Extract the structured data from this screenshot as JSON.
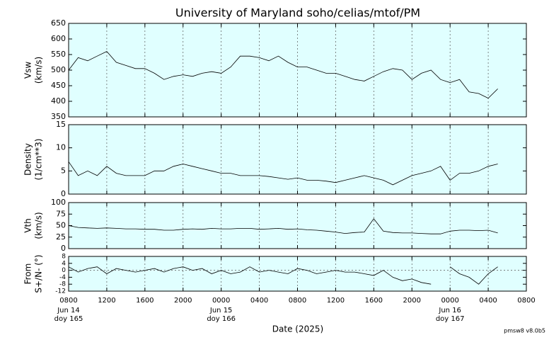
{
  "chart_data": [
    {
      "type": "line",
      "title": "University of Maryland  soho/celias/mtof/PM",
      "ylabel": [
        "Vsw",
        "(km/s)"
      ],
      "x": [
        "2025-06-14T08:00",
        "2025-06-14T09:00",
        "2025-06-14T10:00",
        "2025-06-14T11:00",
        "2025-06-14T12:00",
        "2025-06-14T13:00",
        "2025-06-14T14:00",
        "2025-06-14T15:00",
        "2025-06-14T16:00",
        "2025-06-14T17:00",
        "2025-06-14T18:00",
        "2025-06-14T19:00",
        "2025-06-14T20:00",
        "2025-06-14T21:00",
        "2025-06-14T22:00",
        "2025-06-14T23:00",
        "2025-06-15T00:00",
        "2025-06-15T01:00",
        "2025-06-15T02:00",
        "2025-06-15T03:00",
        "2025-06-15T04:00",
        "2025-06-15T05:00",
        "2025-06-15T06:00",
        "2025-06-15T07:00",
        "2025-06-15T08:00",
        "2025-06-15T09:00",
        "2025-06-15T10:00",
        "2025-06-15T11:00",
        "2025-06-15T12:00",
        "2025-06-15T13:00",
        "2025-06-15T14:00",
        "2025-06-15T15:00",
        "2025-06-15T16:00",
        "2025-06-15T17:00",
        "2025-06-15T18:00",
        "2025-06-15T19:00",
        "2025-06-15T20:00",
        "2025-06-15T21:00",
        "2025-06-15T22:00",
        "2025-06-15T23:00",
        "2025-06-16T00:00",
        "2025-06-16T01:00",
        "2025-06-16T02:00",
        "2025-06-16T03:00",
        "2025-06-16T04:00",
        "2025-06-16T05:00"
      ],
      "series": [
        {
          "color": "#000000",
          "values": [
            500,
            540,
            530,
            545,
            560,
            525,
            515,
            505,
            505,
            490,
            470,
            480,
            485,
            480,
            490,
            495,
            490,
            510,
            545,
            545,
            540,
            530,
            545,
            525,
            510,
            510,
            500,
            490,
            490,
            480,
            470,
            465,
            480,
            495,
            505,
            500,
            470,
            490,
            500,
            470,
            460,
            470,
            430,
            425,
            410,
            440
          ]
        }
      ],
      "xlim": [
        "2025-06-14T08:00",
        "2025-06-16T08:00"
      ],
      "xticks": [
        {
          "value": "2025-06-14T08:00",
          "label": "0800"
        },
        {
          "value": "2025-06-14T12:00",
          "label": "1200"
        },
        {
          "value": "2025-06-14T16:00",
          "label": "1600"
        },
        {
          "value": "2025-06-14T20:00",
          "label": "2000"
        },
        {
          "value": "2025-06-15T00:00",
          "label": "0000"
        },
        {
          "value": "2025-06-15T04:00",
          "label": "0400"
        },
        {
          "value": "2025-06-15T08:00",
          "label": "0800"
        },
        {
          "value": "2025-06-15T12:00",
          "label": "1200"
        },
        {
          "value": "2025-06-15T16:00",
          "label": "1600"
        },
        {
          "value": "2025-06-15T20:00",
          "label": "2000"
        },
        {
          "value": "2025-06-16T00:00",
          "label": "0000"
        },
        {
          "value": "2025-06-16T04:00",
          "label": "0400"
        },
        {
          "value": "2025-06-16T08:00",
          "label": "0800"
        }
      ],
      "ylim": [
        350,
        650
      ],
      "yticks": [
        350,
        400,
        450,
        500,
        550,
        600,
        650
      ],
      "grid": true
    },
    {
      "type": "line",
      "ylabel": [
        "Density",
        "(1/cm**3)"
      ],
      "x": [
        "2025-06-14T08:00",
        "2025-06-14T09:00",
        "2025-06-14T10:00",
        "2025-06-14T11:00",
        "2025-06-14T12:00",
        "2025-06-14T13:00",
        "2025-06-14T14:00",
        "2025-06-14T15:00",
        "2025-06-14T16:00",
        "2025-06-14T17:00",
        "2025-06-14T18:00",
        "2025-06-14T19:00",
        "2025-06-14T20:00",
        "2025-06-14T21:00",
        "2025-06-14T22:00",
        "2025-06-14T23:00",
        "2025-06-15T00:00",
        "2025-06-15T01:00",
        "2025-06-15T02:00",
        "2025-06-15T03:00",
        "2025-06-15T04:00",
        "2025-06-15T05:00",
        "2025-06-15T06:00",
        "2025-06-15T07:00",
        "2025-06-15T08:00",
        "2025-06-15T09:00",
        "2025-06-15T10:00",
        "2025-06-15T11:00",
        "2025-06-15T12:00",
        "2025-06-15T13:00",
        "2025-06-15T14:00",
        "2025-06-15T15:00",
        "2025-06-15T16:00",
        "2025-06-15T17:00",
        "2025-06-15T18:00",
        "2025-06-15T19:00",
        "2025-06-15T20:00",
        "2025-06-15T21:00",
        "2025-06-15T22:00",
        "2025-06-15T23:00",
        "2025-06-16T00:00",
        "2025-06-16T01:00",
        "2025-06-16T02:00",
        "2025-06-16T03:00",
        "2025-06-16T04:00",
        "2025-06-16T05:00"
      ],
      "series": [
        {
          "color": "#000000",
          "values": [
            7,
            4,
            5,
            4,
            6,
            4.5,
            4,
            4,
            4,
            5,
            5,
            6,
            6.5,
            6,
            5.5,
            5,
            4.5,
            4.5,
            4,
            4,
            4,
            3.8,
            3.5,
            3.2,
            3.5,
            3,
            3,
            2.8,
            2.5,
            3,
            3.5,
            4,
            3.5,
            3,
            2,
            3,
            4,
            4.5,
            5,
            6,
            3,
            4.5,
            4.5,
            5,
            6,
            6.5
          ]
        }
      ],
      "xlim": [
        "2025-06-14T08:00",
        "2025-06-16T08:00"
      ],
      "xticks": [
        {
          "value": "2025-06-14T08:00",
          "label": "0800"
        },
        {
          "value": "2025-06-14T12:00",
          "label": "1200"
        },
        {
          "value": "2025-06-14T16:00",
          "label": "1600"
        },
        {
          "value": "2025-06-14T20:00",
          "label": "2000"
        },
        {
          "value": "2025-06-15T00:00",
          "label": "0000"
        },
        {
          "value": "2025-06-15T04:00",
          "label": "0400"
        },
        {
          "value": "2025-06-15T08:00",
          "label": "0800"
        },
        {
          "value": "2025-06-15T12:00",
          "label": "1200"
        },
        {
          "value": "2025-06-15T16:00",
          "label": "1600"
        },
        {
          "value": "2025-06-15T20:00",
          "label": "2000"
        },
        {
          "value": "2025-06-16T00:00",
          "label": "0000"
        },
        {
          "value": "2025-06-16T04:00",
          "label": "0400"
        },
        {
          "value": "2025-06-16T08:00",
          "label": "0800"
        }
      ],
      "ylim": [
        0,
        15
      ],
      "yticks": [
        0,
        5,
        10,
        15
      ],
      "grid": true
    },
    {
      "type": "line",
      "ylabel": [
        "Vth",
        "(km/s)"
      ],
      "x": [
        "2025-06-14T08:00",
        "2025-06-14T09:00",
        "2025-06-14T10:00",
        "2025-06-14T11:00",
        "2025-06-14T12:00",
        "2025-06-14T13:00",
        "2025-06-14T14:00",
        "2025-06-14T15:00",
        "2025-06-14T16:00",
        "2025-06-14T17:00",
        "2025-06-14T18:00",
        "2025-06-14T19:00",
        "2025-06-14T20:00",
        "2025-06-14T21:00",
        "2025-06-14T22:00",
        "2025-06-14T23:00",
        "2025-06-15T00:00",
        "2025-06-15T01:00",
        "2025-06-15T02:00",
        "2025-06-15T03:00",
        "2025-06-15T04:00",
        "2025-06-15T05:00",
        "2025-06-15T06:00",
        "2025-06-15T07:00",
        "2025-06-15T08:00",
        "2025-06-15T09:00",
        "2025-06-15T10:00",
        "2025-06-15T11:00",
        "2025-06-15T12:00",
        "2025-06-15T13:00",
        "2025-06-15T14:00",
        "2025-06-15T15:00",
        "2025-06-15T16:00",
        "2025-06-15T17:00",
        "2025-06-15T18:00",
        "2025-06-15T19:00",
        "2025-06-15T20:00",
        "2025-06-15T21:00",
        "2025-06-15T22:00",
        "2025-06-15T23:00",
        "2025-06-16T00:00",
        "2025-06-16T01:00",
        "2025-06-16T02:00",
        "2025-06-16T03:00",
        "2025-06-16T04:00",
        "2025-06-16T05:00"
      ],
      "series": [
        {
          "color": "#000000",
          "values": [
            50,
            46,
            45,
            44,
            45,
            44,
            43,
            43,
            42,
            42,
            40,
            40,
            42,
            43,
            42,
            44,
            43,
            43,
            44,
            44,
            42,
            43,
            44,
            42,
            43,
            41,
            40,
            38,
            36,
            33,
            35,
            36,
            65,
            38,
            35,
            34,
            34,
            33,
            32,
            32,
            38,
            40,
            40,
            39,
            40,
            34
          ]
        }
      ],
      "xlim": [
        "2025-06-14T08:00",
        "2025-06-16T08:00"
      ],
      "xticks": [
        {
          "value": "2025-06-14T08:00",
          "label": "0800"
        },
        {
          "value": "2025-06-14T12:00",
          "label": "1200"
        },
        {
          "value": "2025-06-14T16:00",
          "label": "1600"
        },
        {
          "value": "2025-06-14T20:00",
          "label": "2000"
        },
        {
          "value": "2025-06-15T00:00",
          "label": "0000"
        },
        {
          "value": "2025-06-15T04:00",
          "label": "0400"
        },
        {
          "value": "2025-06-15T08:00",
          "label": "0800"
        },
        {
          "value": "2025-06-15T12:00",
          "label": "1200"
        },
        {
          "value": "2025-06-15T16:00",
          "label": "1600"
        },
        {
          "value": "2025-06-15T20:00",
          "label": "2000"
        },
        {
          "value": "2025-06-16T00:00",
          "label": "0000"
        },
        {
          "value": "2025-06-16T04:00",
          "label": "0400"
        },
        {
          "value": "2025-06-16T08:00",
          "label": "0800"
        }
      ],
      "ylim": [
        0,
        100
      ],
      "yticks": [
        0,
        25,
        50,
        75,
        100
      ],
      "grid": true
    },
    {
      "type": "line",
      "ylabel": [
        "From",
        "S+/N- (°)"
      ],
      "xlabel": "Date (2025)",
      "x": [
        "2025-06-14T08:00",
        "2025-06-14T09:00",
        "2025-06-14T10:00",
        "2025-06-14T11:00",
        "2025-06-14T12:00",
        "2025-06-14T13:00",
        "2025-06-14T14:00",
        "2025-06-14T15:00",
        "2025-06-14T16:00",
        "2025-06-14T17:00",
        "2025-06-14T18:00",
        "2025-06-14T19:00",
        "2025-06-14T20:00",
        "2025-06-14T21:00",
        "2025-06-14T22:00",
        "2025-06-14T23:00",
        "2025-06-15T00:00",
        "2025-06-15T01:00",
        "2025-06-15T02:00",
        "2025-06-15T03:00",
        "2025-06-15T04:00",
        "2025-06-15T05:00",
        "2025-06-15T06:00",
        "2025-06-15T07:00",
        "2025-06-15T08:00",
        "2025-06-15T09:00",
        "2025-06-15T10:00",
        "2025-06-15T11:00",
        "2025-06-15T12:00",
        "2025-06-15T13:00",
        "2025-06-15T14:00",
        "2025-06-15T15:00",
        "2025-06-15T16:00",
        "2025-06-15T17:00",
        "2025-06-15T18:00",
        "2025-06-15T19:00",
        "2025-06-15T20:00",
        "2025-06-15T21:00",
        "2025-06-15T22:00",
        "2025-06-15T23:00",
        "2025-06-16T00:00",
        "2025-06-16T01:00",
        "2025-06-16T02:00",
        "2025-06-16T03:00",
        "2025-06-16T04:00",
        "2025-06-16T05:00"
      ],
      "series": [
        {
          "color": "#000000",
          "values": [
            2,
            -1,
            1,
            2,
            -2,
            1,
            0,
            -1,
            0,
            1,
            -1,
            1,
            2,
            0,
            1,
            -2,
            0,
            -2,
            -1,
            2,
            -1,
            0,
            -1,
            -2,
            1,
            0,
            -2,
            -1,
            0,
            -1,
            -1,
            -2,
            -3,
            0,
            -4,
            -6,
            -5,
            -7,
            -8,
            null,
            2,
            -2,
            -4,
            -8,
            -2,
            2
          ]
        }
      ],
      "xlim": [
        "2025-06-14T08:00",
        "2025-06-16T08:00"
      ],
      "xticks": [
        {
          "value": "2025-06-14T08:00",
          "label": "0800"
        },
        {
          "value": "2025-06-14T12:00",
          "label": "1200"
        },
        {
          "value": "2025-06-14T16:00",
          "label": "1600"
        },
        {
          "value": "2025-06-14T20:00",
          "label": "2000"
        },
        {
          "value": "2025-06-15T00:00",
          "label": "0000"
        },
        {
          "value": "2025-06-15T04:00",
          "label": "0400"
        },
        {
          "value": "2025-06-15T08:00",
          "label": "0800"
        },
        {
          "value": "2025-06-15T12:00",
          "label": "1200"
        },
        {
          "value": "2025-06-15T16:00",
          "label": "1600"
        },
        {
          "value": "2025-06-15T20:00",
          "label": "2000"
        },
        {
          "value": "2025-06-16T00:00",
          "label": "0000"
        },
        {
          "value": "2025-06-16T04:00",
          "label": "0400"
        },
        {
          "value": "2025-06-16T08:00",
          "label": "0800"
        }
      ],
      "day_labels": [
        {
          "value": "2025-06-14T08:00",
          "label": "Jun 14",
          "doy": "doy 165"
        },
        {
          "value": "2025-06-15T00:00",
          "label": "Jun 15",
          "doy": "doy 166"
        },
        {
          "value": "2025-06-16T00:00",
          "label": "Jun 16",
          "doy": "doy 167"
        }
      ],
      "ylim": [
        -12,
        8
      ],
      "yticks": [
        -12,
        -8,
        -4,
        0,
        4,
        8
      ],
      "grid": true,
      "zero_line": true
    }
  ],
  "footer": "pmsw8 v8.0b5"
}
